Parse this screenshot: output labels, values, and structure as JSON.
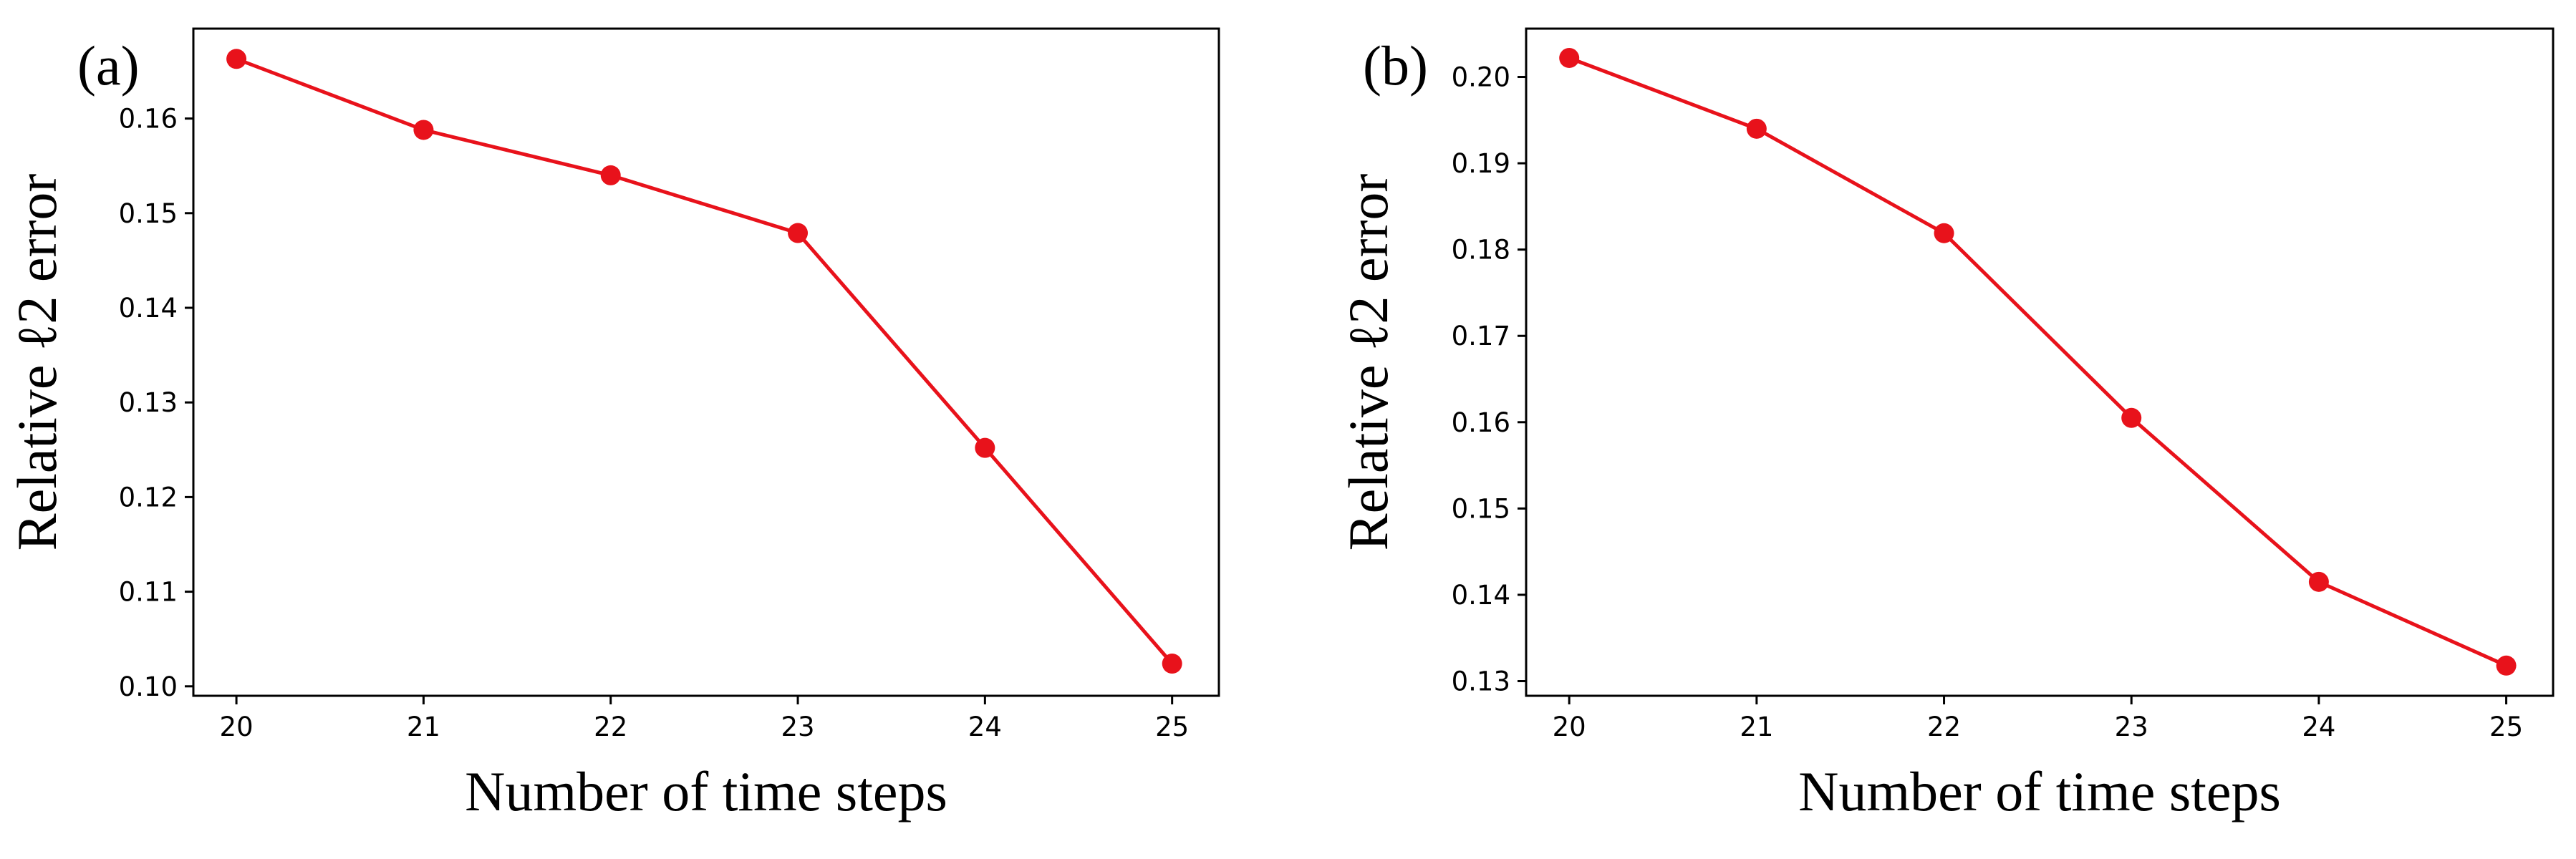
{
  "colors": {
    "series": "#e8121b",
    "axes": "#000000",
    "background": "#ffffff"
  },
  "chart_data": [
    {
      "type": "line",
      "panel_label": "(a)",
      "xlabel": "Number of time steps",
      "ylabel": "Relative ℓ2 error",
      "x": [
        20,
        21,
        22,
        23,
        24,
        25
      ],
      "xticks": [
        "20",
        "21",
        "22",
        "23",
        "24",
        "25"
      ],
      "xlim": [
        19.77,
        25.25
      ],
      "ylim": [
        0.099,
        0.1695
      ],
      "yticks": [
        "0.10",
        "0.11",
        "0.12",
        "0.13",
        "0.14",
        "0.15",
        "0.16"
      ],
      "grid": false,
      "series": [
        {
          "values": [
            0.1663,
            0.1588,
            0.154,
            0.1479,
            0.1252,
            0.1024
          ],
          "marker": "circle"
        }
      ]
    },
    {
      "type": "line",
      "panel_label": "(b)",
      "xlabel": "Number of time steps",
      "ylabel": "Relative ℓ2 error",
      "x": [
        20,
        21,
        22,
        23,
        24,
        25
      ],
      "xticks": [
        "20",
        "21",
        "22",
        "23",
        "24",
        "25"
      ],
      "xlim": [
        19.77,
        25.25
      ],
      "ylim": [
        0.1283,
        0.2056
      ],
      "yticks": [
        "0.13",
        "0.14",
        "0.15",
        "0.16",
        "0.17",
        "0.18",
        "0.19",
        "0.20"
      ],
      "grid": false,
      "series": [
        {
          "values": [
            0.2022,
            0.194,
            0.1819,
            0.1605,
            0.1415,
            0.1318
          ],
          "marker": "circle"
        }
      ]
    }
  ]
}
